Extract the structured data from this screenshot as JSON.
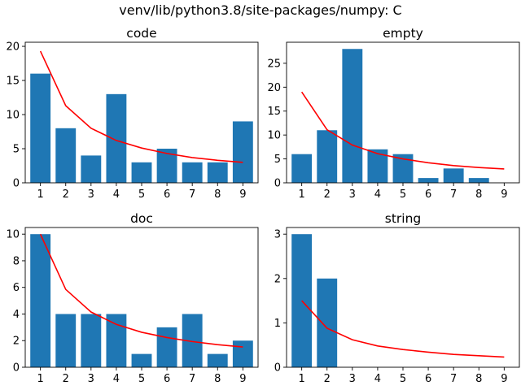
{
  "suptitle": "venv/lib/python3.8/site-packages/numpy: C",
  "colors": {
    "bar": "#1f77b4",
    "line": "#ff0000"
  },
  "chart_data": [
    {
      "type": "bar",
      "title": "code",
      "categories": [
        "1",
        "2",
        "3",
        "4",
        "5",
        "6",
        "7",
        "8",
        "9"
      ],
      "values": [
        16,
        8,
        4,
        13,
        3,
        5,
        3,
        3,
        9
      ],
      "line": [
        19.3,
        11.3,
        8.0,
        6.2,
        5.1,
        4.3,
        3.7,
        3.3,
        3.0
      ],
      "ylim": [
        0,
        20.6
      ],
      "yticks": [
        0,
        5,
        10,
        15,
        20
      ],
      "xlim": [
        0.4,
        9.6
      ],
      "xlabel": "",
      "ylabel": "",
      "grid": false
    },
    {
      "type": "bar",
      "title": "empty",
      "categories": [
        "1",
        "2",
        "3",
        "4",
        "5",
        "6",
        "7",
        "8",
        "9"
      ],
      "values": [
        6,
        11,
        28,
        7,
        6,
        1,
        3,
        1,
        0
      ],
      "line": [
        19.0,
        11.1,
        7.9,
        6.1,
        5.0,
        4.2,
        3.6,
        3.2,
        2.9
      ],
      "ylim": [
        0,
        29.4
      ],
      "yticks": [
        0,
        5,
        10,
        15,
        20,
        25
      ],
      "xlim": [
        0.4,
        9.6
      ],
      "xlabel": "",
      "ylabel": "",
      "grid": false
    },
    {
      "type": "bar",
      "title": "doc",
      "categories": [
        "1",
        "2",
        "3",
        "4",
        "5",
        "6",
        "7",
        "8",
        "9"
      ],
      "values": [
        10,
        4,
        4,
        4,
        1,
        3,
        4,
        1,
        2
      ],
      "line": [
        10.0,
        5.85,
        4.15,
        3.22,
        2.63,
        2.23,
        1.93,
        1.7,
        1.52
      ],
      "ylim": [
        0,
        10.5
      ],
      "yticks": [
        0,
        2,
        4,
        6,
        8,
        10
      ],
      "xlim": [
        0.4,
        9.6
      ],
      "xlabel": "",
      "ylabel": "",
      "grid": false
    },
    {
      "type": "bar",
      "title": "string",
      "categories": [
        "1",
        "2",
        "3",
        "4",
        "5",
        "6",
        "7",
        "8",
        "9"
      ],
      "values": [
        3,
        2,
        0,
        0,
        0,
        0,
        0,
        0,
        0
      ],
      "line": [
        1.5,
        0.88,
        0.62,
        0.48,
        0.4,
        0.34,
        0.29,
        0.26,
        0.23
      ],
      "ylim": [
        0,
        3.15
      ],
      "yticks": [
        0,
        1,
        2,
        3
      ],
      "xlim": [
        0.4,
        9.6
      ],
      "xlabel": "",
      "ylabel": "",
      "grid": false
    }
  ]
}
